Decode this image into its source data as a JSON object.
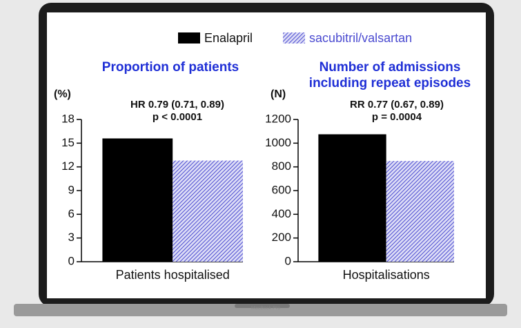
{
  "device_label": "MacBook Pro",
  "chart_data": [
    {
      "type": "bar",
      "title": [
        "Proportion of patients"
      ],
      "y_label": "(%)",
      "annotations": [
        "HR 0.79 (0.71, 0.89)",
        "p < 0.0001"
      ],
      "categories": [
        "Patients hospitalised"
      ],
      "series": [
        {
          "name": "Enalapril",
          "color": "#000000",
          "values": [
            15.6
          ]
        },
        {
          "name": "sacubitril/valsartan",
          "color": "#4a4ad0",
          "hatch": true,
          "values": [
            12.8
          ]
        }
      ],
      "ylim": [
        0,
        18
      ],
      "yticks": [
        0,
        3,
        6,
        9,
        12,
        15,
        18
      ]
    },
    {
      "type": "bar",
      "title": [
        "Number of admissions",
        "including repeat episodes"
      ],
      "y_label": "(N)",
      "annotations": [
        "RR 0.77 (0.67, 0.89)",
        "p = 0.0004"
      ],
      "categories": [
        "Hospitalisations"
      ],
      "series": [
        {
          "color": "#000000",
          "values": [
            1075
          ]
        },
        {
          "color": "#4a4ad0",
          "hatch": true,
          "values": [
            850
          ]
        }
      ],
      "ylim": [
        0,
        1200
      ],
      "yticks": [
        0,
        200,
        400,
        600,
        800,
        1000,
        1200
      ]
    }
  ]
}
